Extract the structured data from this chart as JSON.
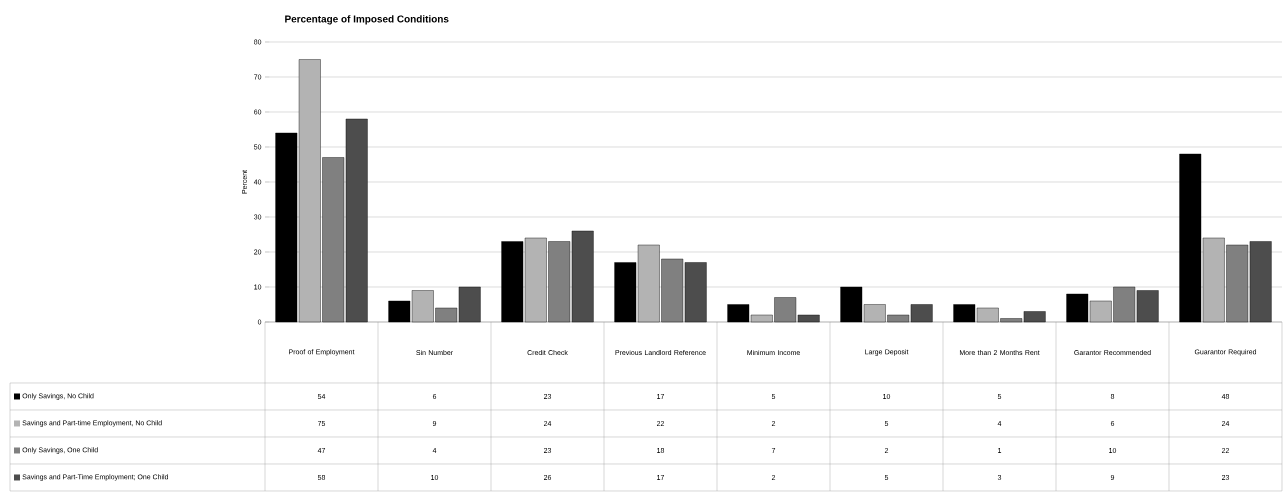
{
  "chart_data": {
    "type": "bar",
    "title": "Percentage of Imposed Conditions",
    "ylabel": "Percent",
    "categories": [
      "Proof of Employment",
      "Sin Number",
      "Credit Check",
      "Previous Landlord Reference",
      "Minimum Income",
      "Large Deposit",
      "More than 2 Months Rent",
      "Garantor Recommended",
      "Guarantor Required"
    ],
    "series": [
      {
        "name": "Only Savings, No Child",
        "color": "#000000",
        "values": [
          54,
          6,
          23,
          17,
          5,
          10,
          5,
          8,
          48
        ]
      },
      {
        "name": "Savings and Part-time Employment, No Child",
        "color": "#b3b3b3",
        "values": [
          75,
          9,
          24,
          22,
          2,
          5,
          4,
          6,
          24
        ]
      },
      {
        "name": "Only Savings, One Child",
        "color": "#808080",
        "values": [
          47,
          4,
          23,
          18,
          7,
          2,
          1,
          10,
          22
        ]
      },
      {
        "name": "Savings and Part-Time Employment; One Child",
        "color": "#4d4d4d",
        "values": [
          58,
          10,
          26,
          17,
          2,
          5,
          3,
          9,
          23
        ]
      }
    ],
    "ylim": [
      0,
      80
    ],
    "yticks": [
      0,
      10,
      20,
      30,
      40,
      50,
      60,
      70,
      80
    ],
    "grid": "y",
    "legend": "bottom",
    "data_labels": true
  }
}
